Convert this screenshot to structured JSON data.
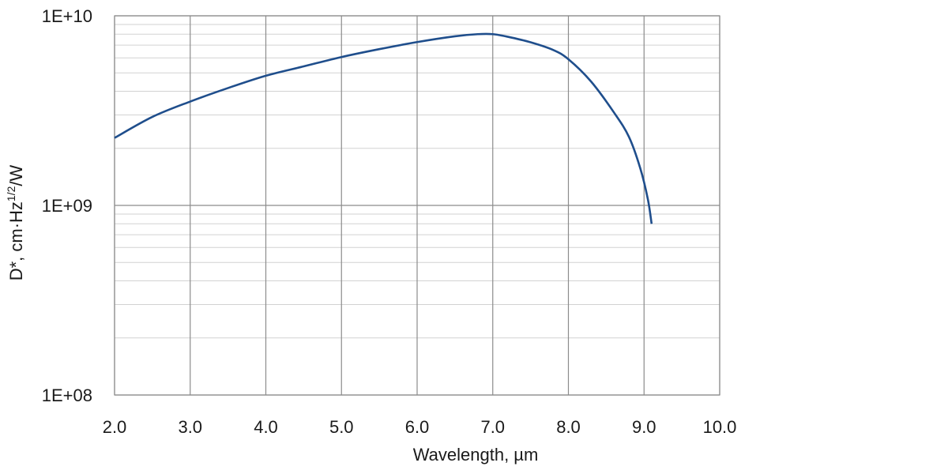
{
  "chart_data": {
    "type": "line",
    "xlabel": "Wavelength, µm",
    "ylabel": {
      "prefix": "D*, cm·Hz",
      "superscript": "1/2",
      "suffix": "/W"
    },
    "xlim": [
      2.0,
      10.0
    ],
    "ylim": [
      100000000,
      10000000000
    ],
    "y_scale": "log",
    "x_ticks": [
      "2.0",
      "3.0",
      "4.0",
      "5.0",
      "6.0",
      "7.0",
      "8.0",
      "9.0",
      "10.0"
    ],
    "y_ticks": [
      {
        "value": 100000000,
        "label": "1E+08"
      },
      {
        "value": 1000000000,
        "label": "1E+09"
      },
      {
        "value": 10000000000,
        "label": "1E+10"
      }
    ],
    "grid": true,
    "series": [
      {
        "color": "#1f4e8c",
        "x": [
          2.0,
          2.5,
          3.0,
          3.5,
          4.0,
          4.5,
          5.0,
          5.5,
          6.0,
          6.5,
          6.8,
          7.0,
          7.2,
          7.5,
          7.8,
          8.0,
          8.3,
          8.6,
          8.8,
          8.95,
          9.05,
          9.1
        ],
        "y": [
          2270000000,
          2930000000,
          3530000000,
          4160000000,
          4830000000,
          5410000000,
          6060000000,
          6670000000,
          7270000000,
          7800000000,
          8000000000,
          8000000000,
          7750000000,
          7250000000,
          6600000000,
          5900000000,
          4500000000,
          3100000000,
          2300000000,
          1570000000,
          1080000000,
          800000000
        ]
      }
    ]
  }
}
